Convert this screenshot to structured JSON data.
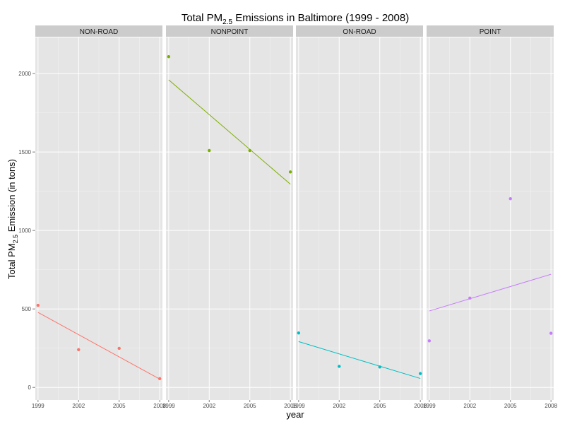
{
  "chart_data": {
    "type": "scatter",
    "title_prefix": "Total PM",
    "title_sub": "2.5",
    "title_suffix": " Emissions in Baltimore (1999 - 2008)",
    "xlabel": "year",
    "ylabel_prefix": "Total PM",
    "ylabel_sub": "2.5",
    "ylabel_suffix": " Emission (in tons)",
    "xlim": [
      1998.8,
      2008.2
    ],
    "ylim": [
      -80,
      2230
    ],
    "x_ticks": [
      "1999",
      "2002",
      "2005",
      "2008"
    ],
    "y_ticks": [
      "0",
      "500",
      "1000",
      "1500",
      "2000"
    ],
    "grid": true,
    "facets": [
      {
        "label": "NON-ROAD",
        "color": "#f8766d",
        "x": [
          1999,
          2002,
          2005,
          2008
        ],
        "y": [
          522.9,
          240.8,
          248.9,
          55.8
        ],
        "trend": [
          478,
          53
        ]
      },
      {
        "label": "NONPOINT",
        "color": "#7cae00",
        "x": [
          1999,
          2002,
          2005,
          2008
        ],
        "y": [
          2107.6,
          1509.5,
          1509.5,
          1373.2
        ],
        "trend": [
          1960,
          1295
        ]
      },
      {
        "label": "ON-ROAD",
        "color": "#00bfc4",
        "x": [
          1999,
          2002,
          2005,
          2008
        ],
        "y": [
          346.8,
          134.3,
          130.4,
          88.3
        ],
        "trend": [
          292,
          57
        ]
      },
      {
        "label": "POINT",
        "color": "#c77cff",
        "x": [
          1999,
          2002,
          2005,
          2008
        ],
        "y": [
          296.8,
          569.3,
          1202.5,
          344.98
        ],
        "trend": [
          487,
          721
        ]
      }
    ]
  }
}
